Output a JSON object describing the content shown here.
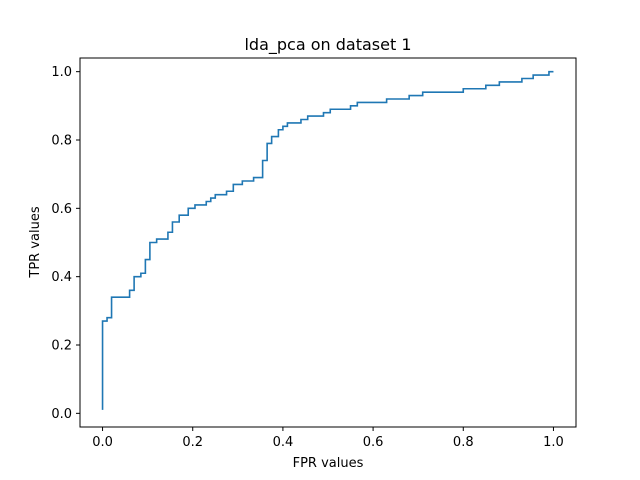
{
  "chart_data": {
    "type": "line",
    "title": "lda_pca on dataset 1",
    "xlabel": "FPR values",
    "ylabel": "TPR values",
    "xlim": [
      -0.05,
      1.05
    ],
    "ylim": [
      -0.04,
      1.04
    ],
    "xticks": [
      0.0,
      0.2,
      0.4,
      0.6,
      0.8,
      1.0
    ],
    "xtick_labels": [
      "0.0",
      "0.2",
      "0.4",
      "0.6",
      "0.8",
      "1.0"
    ],
    "yticks": [
      0.0,
      0.2,
      0.4,
      0.6,
      0.8,
      1.0
    ],
    "ytick_labels": [
      "0.0",
      "0.2",
      "0.4",
      "0.6",
      "0.8",
      "1.0"
    ],
    "grid": false,
    "legend": "none",
    "line_color": "#1f77b4",
    "series": [
      {
        "step_points": [
          [
            0.0,
            0.01
          ],
          [
            0.0,
            0.27
          ],
          [
            0.01,
            0.27
          ],
          [
            0.01,
            0.28
          ],
          [
            0.02,
            0.28
          ],
          [
            0.02,
            0.34
          ],
          [
            0.06,
            0.34
          ],
          [
            0.06,
            0.36
          ],
          [
            0.07,
            0.36
          ],
          [
            0.07,
            0.4
          ],
          [
            0.085,
            0.4
          ],
          [
            0.085,
            0.41
          ],
          [
            0.095,
            0.41
          ],
          [
            0.095,
            0.45
          ],
          [
            0.105,
            0.45
          ],
          [
            0.105,
            0.5
          ],
          [
            0.12,
            0.5
          ],
          [
            0.12,
            0.51
          ],
          [
            0.145,
            0.51
          ],
          [
            0.145,
            0.53
          ],
          [
            0.155,
            0.53
          ],
          [
            0.155,
            0.56
          ],
          [
            0.17,
            0.56
          ],
          [
            0.17,
            0.58
          ],
          [
            0.19,
            0.58
          ],
          [
            0.19,
            0.6
          ],
          [
            0.205,
            0.6
          ],
          [
            0.205,
            0.61
          ],
          [
            0.23,
            0.61
          ],
          [
            0.23,
            0.62
          ],
          [
            0.24,
            0.62
          ],
          [
            0.24,
            0.63
          ],
          [
            0.25,
            0.63
          ],
          [
            0.25,
            0.64
          ],
          [
            0.275,
            0.64
          ],
          [
            0.275,
            0.65
          ],
          [
            0.29,
            0.65
          ],
          [
            0.29,
            0.67
          ],
          [
            0.31,
            0.67
          ],
          [
            0.31,
            0.68
          ],
          [
            0.335,
            0.68
          ],
          [
            0.335,
            0.69
          ],
          [
            0.355,
            0.69
          ],
          [
            0.355,
            0.74
          ],
          [
            0.365,
            0.74
          ],
          [
            0.365,
            0.79
          ],
          [
            0.375,
            0.79
          ],
          [
            0.375,
            0.81
          ],
          [
            0.39,
            0.81
          ],
          [
            0.39,
            0.83
          ],
          [
            0.4,
            0.83
          ],
          [
            0.4,
            0.84
          ],
          [
            0.41,
            0.84
          ],
          [
            0.41,
            0.85
          ],
          [
            0.44,
            0.85
          ],
          [
            0.44,
            0.86
          ],
          [
            0.455,
            0.86
          ],
          [
            0.455,
            0.87
          ],
          [
            0.49,
            0.87
          ],
          [
            0.49,
            0.88
          ],
          [
            0.505,
            0.88
          ],
          [
            0.505,
            0.89
          ],
          [
            0.55,
            0.89
          ],
          [
            0.55,
            0.9
          ],
          [
            0.565,
            0.9
          ],
          [
            0.565,
            0.91
          ],
          [
            0.63,
            0.91
          ],
          [
            0.63,
            0.92
          ],
          [
            0.68,
            0.92
          ],
          [
            0.68,
            0.93
          ],
          [
            0.71,
            0.93
          ],
          [
            0.71,
            0.94
          ],
          [
            0.8,
            0.94
          ],
          [
            0.8,
            0.95
          ],
          [
            0.85,
            0.95
          ],
          [
            0.85,
            0.96
          ],
          [
            0.88,
            0.96
          ],
          [
            0.88,
            0.97
          ],
          [
            0.93,
            0.97
          ],
          [
            0.93,
            0.98
          ],
          [
            0.955,
            0.98
          ],
          [
            0.955,
            0.99
          ],
          [
            0.99,
            0.99
          ],
          [
            0.99,
            1.0
          ],
          [
            1.0,
            1.0
          ]
        ]
      }
    ]
  }
}
